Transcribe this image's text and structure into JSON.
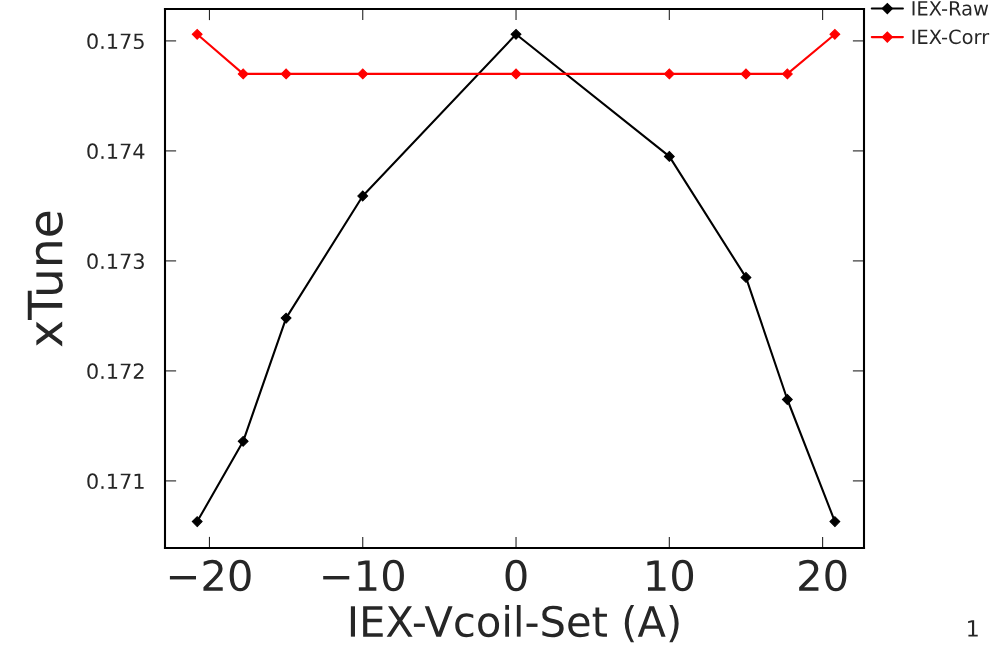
{
  "chart_data": {
    "type": "line",
    "xlabel": "IEX-Vcoil-Set (A)",
    "ylabel": "xTune",
    "xlim": [
      -22.9,
      22.7
    ],
    "ylim": [
      0.17039,
      0.17529
    ],
    "xticks": [
      {
        "value": -20,
        "label": "−20"
      },
      {
        "value": -10,
        "label": "−10"
      },
      0,
      10,
      20
    ],
    "yticks": [
      0.171,
      0.172,
      0.173,
      0.174,
      0.175
    ],
    "x": [
      -20.8,
      -17.8,
      -15,
      -10,
      0,
      10,
      15,
      17.7,
      20.8
    ],
    "series": [
      {
        "name": "IEX-Raw",
        "color": "#000000",
        "values": [
          0.17063,
          0.17136,
          0.17248,
          0.17359,
          0.17506,
          0.17395,
          0.17285,
          0.17174,
          0.17063
        ]
      },
      {
        "name": "IEX-Corr",
        "color": "#ff0000",
        "values": [
          0.17506,
          0.1747,
          0.1747,
          0.1747,
          0.1747,
          0.1747,
          0.1747,
          0.1747,
          0.17506
        ]
      }
    ],
    "marker": "diamond",
    "line_style": "solid",
    "grid": false,
    "legend": "top right",
    "annotations": [
      "1"
    ]
  }
}
